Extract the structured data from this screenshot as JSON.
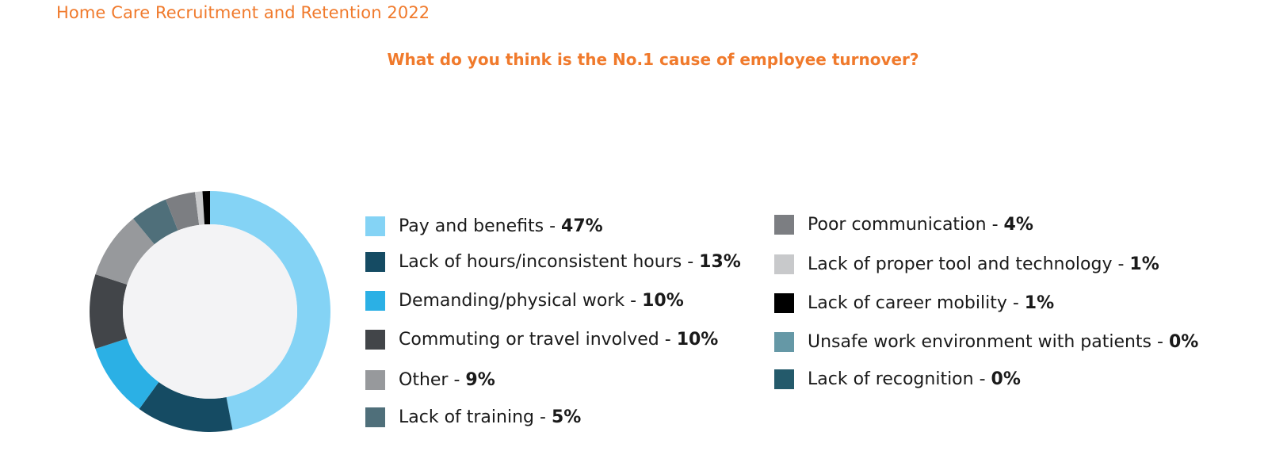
{
  "header": {
    "text": "Home Care Recruitment and Retention 2022"
  },
  "chart_data": {
    "type": "pie",
    "variant": "donut",
    "title": "What do you think is the No.1 cause of employee turnover?",
    "slices": [
      {
        "label": "Pay and benefits",
        "value": 47,
        "pct_label": "47%",
        "color": "#84d3f5"
      },
      {
        "label": "Lack of hours/inconsistent hours",
        "value": 13,
        "pct_label": "13%",
        "color": "#154b63"
      },
      {
        "label": "Demanding/physical work",
        "value": 10,
        "pct_label": "10%",
        "color": "#2bb0e5"
      },
      {
        "label": "Commuting or travel involved",
        "value": 10,
        "pct_label": "10%",
        "color": "#424549"
      },
      {
        "label": "Other",
        "value": 9,
        "pct_label": "9%",
        "color": "#97999c"
      },
      {
        "label": "Lack of training",
        "value": 5,
        "pct_label": "5%",
        "color": "#4f6f7a"
      },
      {
        "label": "Poor communication",
        "value": 4,
        "pct_label": "4%",
        "color": "#7c7e82"
      },
      {
        "label": "Lack of proper tool and technology",
        "value": 1,
        "pct_label": "1%",
        "color": "#c8c9cb"
      },
      {
        "label": "Lack of career mobility",
        "value": 1,
        "pct_label": "1%",
        "color": "#000000"
      },
      {
        "label": "Unsafe work environment with patients",
        "value": 0,
        "pct_label": "0%",
        "color": "#6598a6"
      },
      {
        "label": "Lack of recognition",
        "value": 0,
        "pct_label": "0%",
        "color": "#245a6b"
      }
    ],
    "legend": "right, two columns",
    "center_color": "#f3f3f5"
  }
}
